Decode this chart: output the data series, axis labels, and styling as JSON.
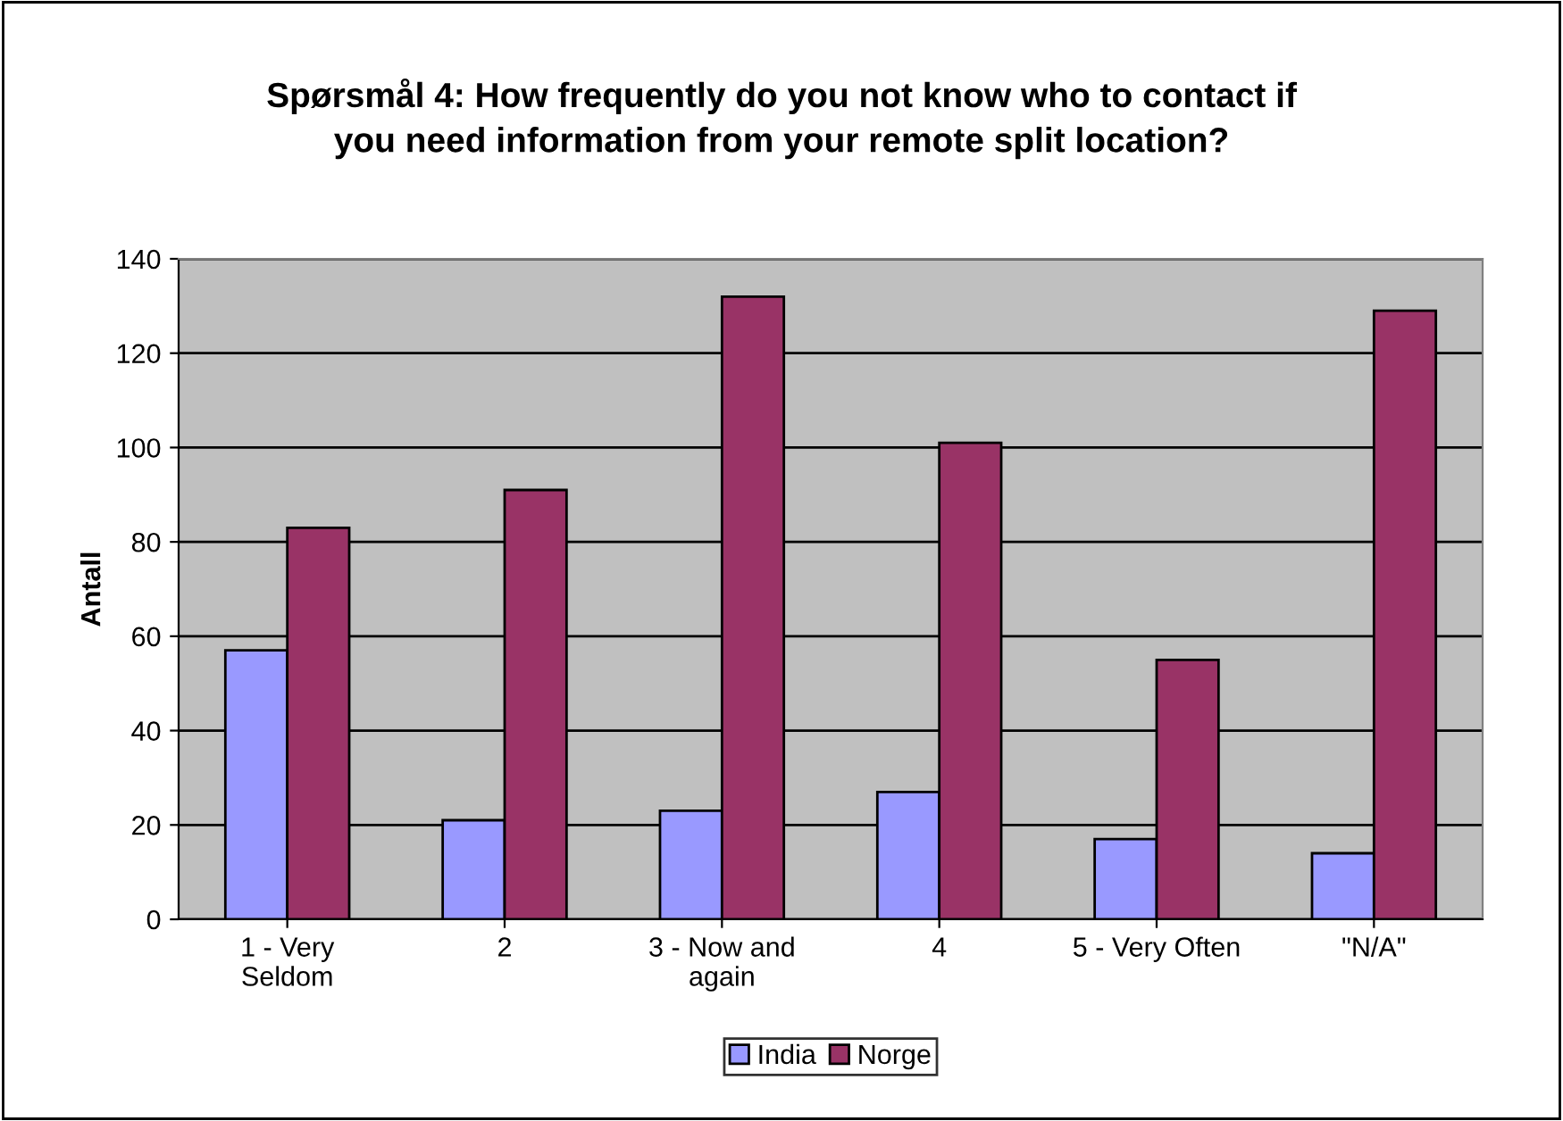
{
  "chart_data": {
    "type": "bar",
    "title": "Spørsmål 4: How frequently do you not know who to contact if\nyou need information from your remote split location?",
    "ylabel": "Antall",
    "categories": [
      "1 - Very\nSeldom",
      "2",
      "3 - Now and\nagain",
      "4",
      "5 - Very Often",
      "\"N/A\""
    ],
    "series": [
      {
        "name": "India",
        "color": "#9999ff",
        "values": [
          57,
          21,
          23,
          27,
          17,
          14
        ]
      },
      {
        "name": "Norge",
        "color": "#993366",
        "values": [
          83,
          91,
          132,
          101,
          55,
          129
        ]
      }
    ],
    "ylim": [
      0,
      140
    ],
    "yticks": [
      0,
      20,
      40,
      60,
      80,
      100,
      120,
      140
    ],
    "grid": "y",
    "legend": "bottom"
  }
}
